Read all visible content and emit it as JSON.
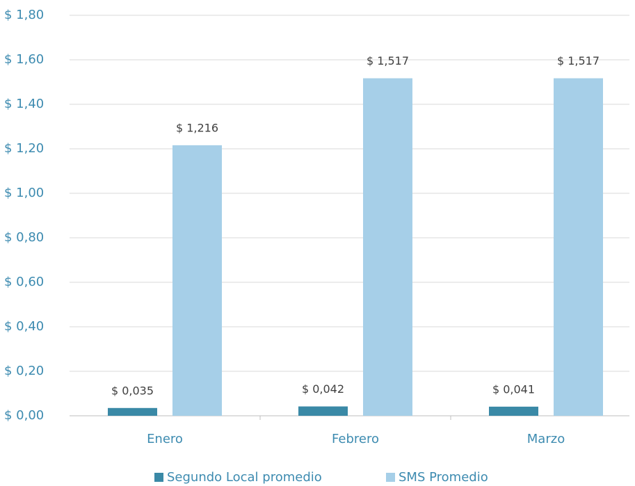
{
  "chart_data": {
    "type": "bar",
    "categories": [
      "Enero",
      "Febrero",
      "Marzo"
    ],
    "series": [
      {
        "name": "Segundo Local promedio",
        "color": "#3a89a6",
        "values": [
          0.035,
          0.042,
          0.041
        ],
        "value_labels": [
          "$ 0,035",
          "$ 0,042",
          "$ 0,041"
        ]
      },
      {
        "name": "SMS Promedio",
        "color": "#a6cfe8",
        "values": [
          1.216,
          1.517,
          1.517
        ],
        "value_labels": [
          "$ 1,216",
          "$ 1,517",
          "$ 1,517"
        ]
      }
    ],
    "ylim": [
      0,
      1.8
    ],
    "yticks": [
      {
        "value": 0,
        "label": "$ 0,00"
      },
      {
        "value": 0.2,
        "label": "$ 0,20"
      },
      {
        "value": 0.4,
        "label": "$ 0,40"
      },
      {
        "value": 0.6,
        "label": "$ 0,60"
      },
      {
        "value": 0.8,
        "label": "$ 0,80"
      },
      {
        "value": 1.0,
        "label": "$ 1,00"
      },
      {
        "value": 1.2,
        "label": "$ 1,20"
      },
      {
        "value": 1.4,
        "label": "$ 1,40"
      },
      {
        "value": 1.6,
        "label": "$ 1,60"
      },
      {
        "value": 1.8,
        "label": "$ 1,80"
      }
    ],
    "grid": true,
    "legend": "bottom"
  }
}
